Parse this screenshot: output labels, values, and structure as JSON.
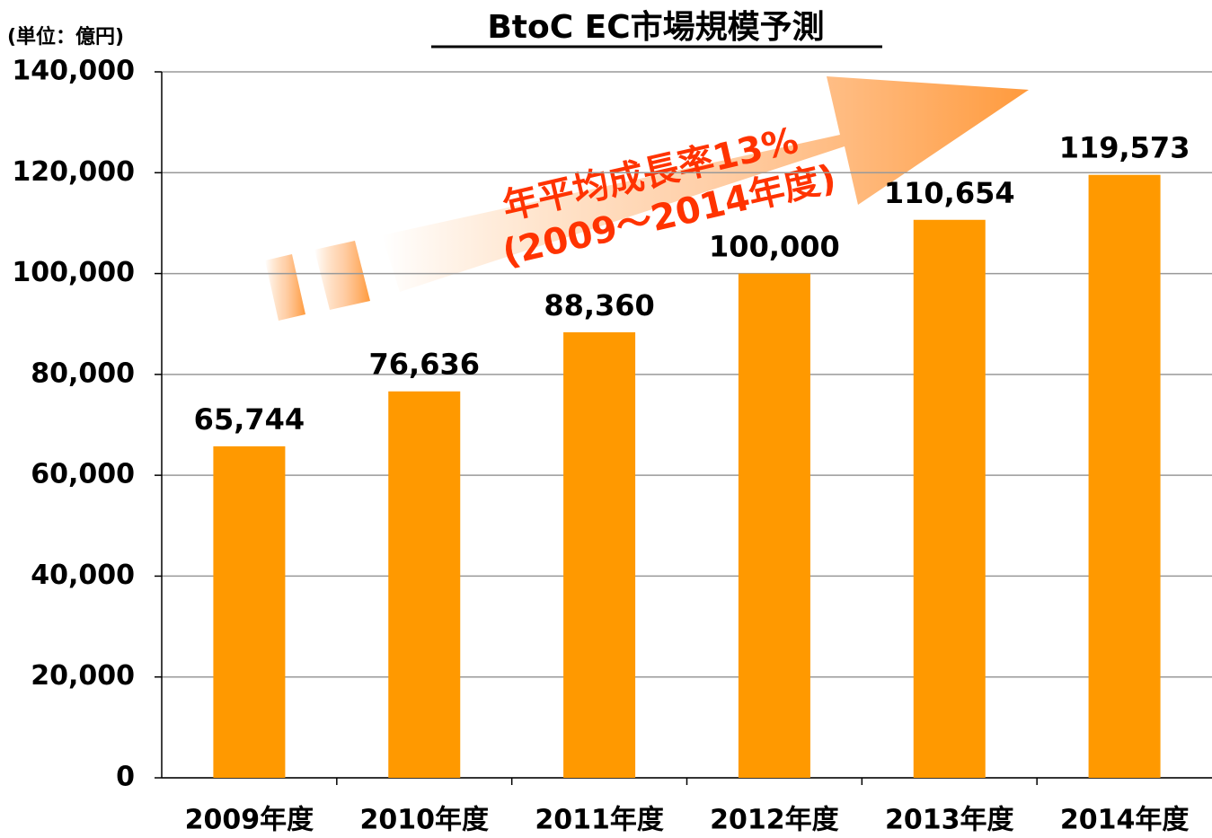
{
  "chart_data": {
    "type": "bar",
    "title": "BtoC EC市場規模予測",
    "unit_label": "(単位：億円)",
    "annotations": [
      "年平均成長率13%",
      "(2009～2014年度)"
    ],
    "categories": [
      "2009年度",
      "2010年度",
      "2011年度",
      "2012年度",
      "2013年度",
      "2014年度"
    ],
    "values": [
      65744,
      76636,
      88360,
      100000,
      110654,
      119573
    ],
    "value_labels": [
      "65,744",
      "76,636",
      "88,360",
      "100,000",
      "110,654",
      "119,573"
    ],
    "color": "#ff9900",
    "ylim": [
      0,
      140000
    ],
    "yticks": [
      0,
      {
        "value": 20000,
        "label": "20,000"
      },
      {
        "value": 40000,
        "label": "40,000"
      },
      {
        "value": 60000,
        "label": "60,000"
      },
      {
        "value": 80000,
        "label": "80,000"
      },
      {
        "value": 100000,
        "label": "100,000"
      },
      {
        "value": 120000,
        "label": "120,000"
      },
      {
        "value": 140000,
        "label": "140,000"
      }
    ],
    "grid": true
  }
}
